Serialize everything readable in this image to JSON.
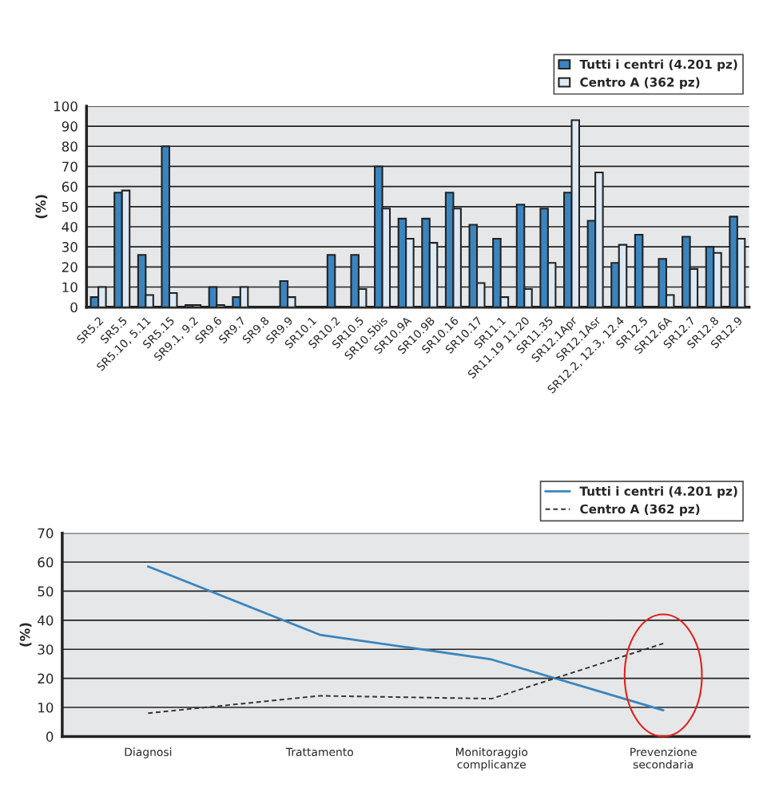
{
  "chart_data": [
    {
      "type": "bar",
      "ylabel": "(%)",
      "categories": [
        "SR5.2",
        "SR5.5",
        "SR5.10, 5.11",
        "SR5.15",
        "SR9.1, 9.2",
        "SR9.6",
        "SR9.7",
        "SR9.8",
        "SR9.9",
        "SR10.1",
        "SR10.2",
        "SR10.5",
        "SR10.5bis",
        "SR10.9A",
        "SR10.9B",
        "SR10.16",
        "SR10.17",
        "SR11.1",
        "SR11.19 11.20",
        "SR11.35",
        "SR12.1Apr",
        "SR12.1Asr",
        "SR12.2, 12.3, 12.4",
        "SR12.5",
        "SR12.6A",
        "SR12.7",
        "SR12.8",
        "SR12.9"
      ],
      "series": [
        {
          "name": "Tutti i centri (4.201 pz)",
          "color": "#3a85bf",
          "values": [
            5,
            57,
            26,
            80,
            1,
            10,
            5,
            0,
            13,
            0,
            26,
            26,
            70,
            44,
            44,
            57,
            41,
            34,
            51,
            49,
            57,
            43,
            22,
            36,
            24,
            35,
            30,
            45
          ]
        },
        {
          "name": "Centro A (362 pz)",
          "color": "#dde9f5",
          "values": [
            10,
            58,
            6,
            7,
            1,
            1,
            10,
            0,
            5,
            0,
            0,
            9,
            49,
            34,
            32,
            49,
            12,
            5,
            9,
            22,
            93,
            67,
            31,
            0,
            6,
            19,
            27,
            34
          ]
        }
      ],
      "ylim": [
        0,
        100
      ],
      "yticks": [
        0,
        10,
        20,
        30,
        40,
        50,
        60,
        70,
        80,
        90,
        100
      ],
      "grid": "y",
      "legend": "top right"
    },
    {
      "type": "line",
      "ylabel": "(%)",
      "categories": [
        "Diagnosi",
        "Trattamento",
        "Monitoraggio\ncomplicanze",
        "Prevenzione\nsecondaria"
      ],
      "series": [
        {
          "name": "Tutti i centri (4.201 pz)",
          "color": "#3a85bf",
          "line_style": "solid",
          "values": [
            58.5,
            35,
            26.5,
            9
          ]
        },
        {
          "name": "Centro A (362 pz)",
          "color": "#333333",
          "line_style": "dashed",
          "values": [
            8,
            14,
            13,
            32
          ]
        }
      ],
      "ylim": [
        0,
        70
      ],
      "yticks": [
        0,
        10,
        20,
        30,
        40,
        50,
        60,
        70
      ],
      "grid": "y",
      "legend": "top right",
      "marker": "none"
    }
  ]
}
